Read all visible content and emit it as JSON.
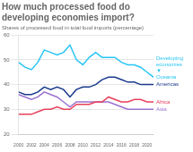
{
  "chart_data": {
    "type": "line",
    "title": [
      "How much processed food do",
      "developing economies import?"
    ],
    "subtitle": "Shares of processed food in total food imports (percentage)",
    "x": [
      2000,
      2001,
      2002,
      2003,
      2004,
      2005,
      2006,
      2007,
      2008,
      2009,
      2010,
      2011,
      2012,
      2013,
      2014,
      2015,
      2016,
      2017,
      2018,
      2019,
      2020,
      2021
    ],
    "series": [
      {
        "name": "Developing economies",
        "color": "#29C5F6",
        "values": [
          49,
          47,
          46,
          49,
          54,
          53,
          52,
          53,
          56,
          50,
          48,
          51,
          53,
          51,
          51,
          51,
          49,
          48,
          48,
          47,
          45,
          43
        ]
      },
      {
        "name": "Americas",
        "color": "#1A3A8C",
        "values": [
          37,
          36,
          36,
          37,
          39,
          38,
          39,
          38,
          35,
          38,
          39,
          39,
          40,
          42,
          43,
          43,
          42,
          41,
          41,
          40,
          40,
          40
        ]
      },
      {
        "name": "Africa",
        "color": "#E8405A",
        "values": [
          28,
          28,
          28,
          29,
          30,
          30,
          31,
          30,
          30,
          32,
          32,
          32,
          33,
          33,
          35,
          34,
          33,
          33,
          34,
          34,
          33,
          33
        ]
      },
      {
        "name": "Asia",
        "color": "#9B72CF",
        "values": [
          36,
          35,
          34,
          35,
          37,
          36,
          35,
          33,
          31,
          33,
          33,
          33,
          33,
          33,
          33,
          32,
          31,
          30,
          30,
          30,
          30,
          30
        ]
      }
    ],
    "annotations": [
      "▼",
      "Oceania"
    ],
    "xlim": [
      2000,
      2021
    ],
    "ylim": [
      20,
      60
    ],
    "xticks": [
      2000,
      2002,
      2004,
      2006,
      2008,
      2010,
      2012,
      2014,
      2016,
      2018,
      2020
    ],
    "yticks": [
      20,
      30,
      40,
      50,
      60
    ],
    "grid": "y"
  }
}
